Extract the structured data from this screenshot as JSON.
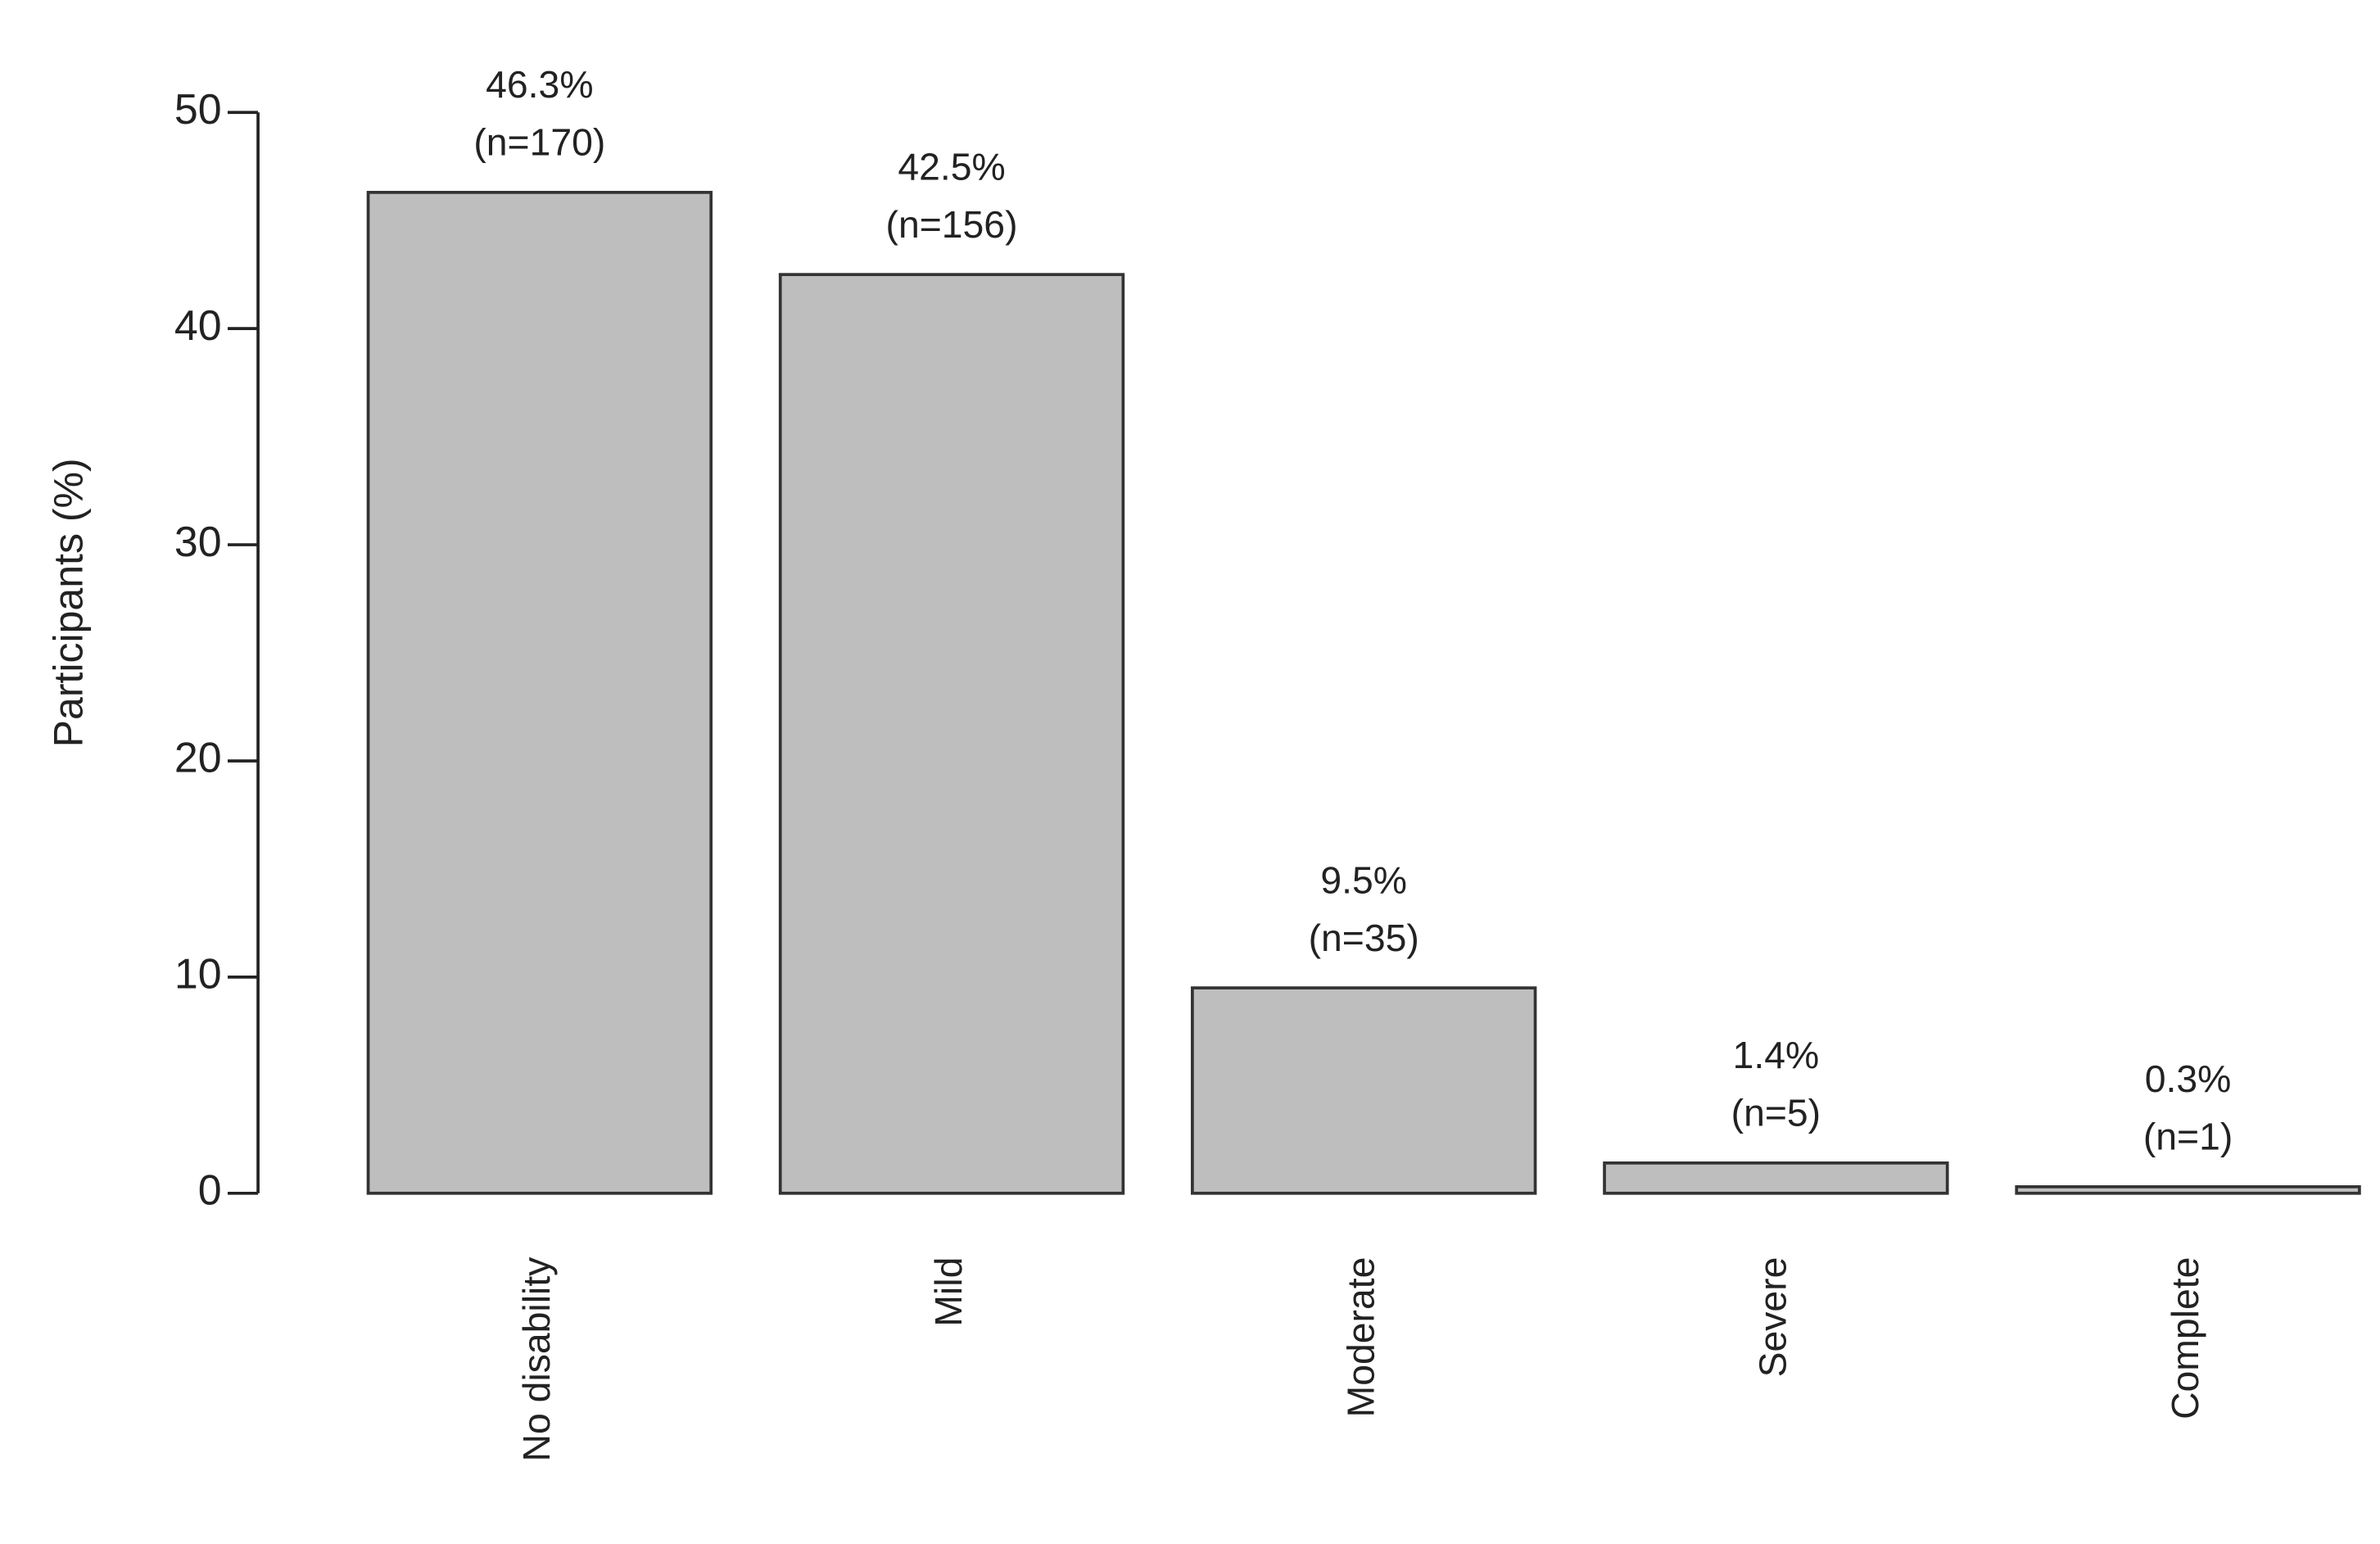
{
  "chart_data": {
    "type": "bar",
    "ylabel": "Participants (%)",
    "categories": [
      "No disability",
      "Mild",
      "Moderate",
      "Severe",
      "Complete"
    ],
    "values": [
      46.3,
      42.5,
      9.5,
      1.4,
      0.3
    ],
    "value_labels": [
      "46.3%",
      "42.5%",
      "9.5%",
      "1.4%",
      "0.3%"
    ],
    "n_labels": [
      "(n=170)",
      "(n=156)",
      "(n=35)",
      "(n=5)",
      "(n=1)"
    ],
    "color": "#bebebe",
    "ylim": [
      0,
      50
    ],
    "yticks": [
      0,
      10,
      20,
      30,
      40,
      50
    ],
    "grid": false
  }
}
